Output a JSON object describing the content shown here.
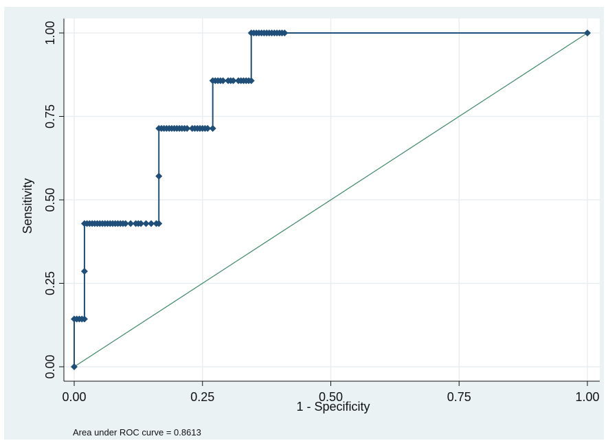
{
  "chart_data": {
    "type": "line",
    "xlabel": "1 - Specificity",
    "ylabel": "Sensitivity",
    "xlim": [
      0,
      1
    ],
    "ylim": [
      0,
      1
    ],
    "x_ticks": [
      "0.00",
      "0.25",
      "0.50",
      "0.75",
      "1.00"
    ],
    "y_ticks": [
      "0.00",
      "0.25",
      "0.50",
      "0.75",
      "1.00"
    ],
    "grid": true,
    "series": [
      {
        "name": "",
        "color": "#1f4e79",
        "marker": "diamond",
        "points": [
          [
            0.0,
            0.0
          ],
          [
            0.0,
            0.143
          ],
          [
            0.005,
            0.143
          ],
          [
            0.01,
            0.143
          ],
          [
            0.015,
            0.143
          ],
          [
            0.02,
            0.143
          ],
          [
            0.02,
            0.286
          ],
          [
            0.02,
            0.429
          ],
          [
            0.025,
            0.429
          ],
          [
            0.03,
            0.429
          ],
          [
            0.035,
            0.429
          ],
          [
            0.04,
            0.429
          ],
          [
            0.045,
            0.429
          ],
          [
            0.05,
            0.429
          ],
          [
            0.055,
            0.429
          ],
          [
            0.06,
            0.429
          ],
          [
            0.065,
            0.429
          ],
          [
            0.07,
            0.429
          ],
          [
            0.075,
            0.429
          ],
          [
            0.08,
            0.429
          ],
          [
            0.085,
            0.429
          ],
          [
            0.09,
            0.429
          ],
          [
            0.095,
            0.429
          ],
          [
            0.1,
            0.429
          ],
          [
            0.11,
            0.429
          ],
          [
            0.12,
            0.429
          ],
          [
            0.125,
            0.429
          ],
          [
            0.13,
            0.429
          ],
          [
            0.14,
            0.429
          ],
          [
            0.15,
            0.429
          ],
          [
            0.16,
            0.429
          ],
          [
            0.165,
            0.429
          ],
          [
            0.165,
            0.571
          ],
          [
            0.165,
            0.714
          ],
          [
            0.17,
            0.714
          ],
          [
            0.175,
            0.714
          ],
          [
            0.18,
            0.714
          ],
          [
            0.185,
            0.714
          ],
          [
            0.19,
            0.714
          ],
          [
            0.195,
            0.714
          ],
          [
            0.2,
            0.714
          ],
          [
            0.205,
            0.714
          ],
          [
            0.21,
            0.714
          ],
          [
            0.215,
            0.714
          ],
          [
            0.22,
            0.714
          ],
          [
            0.23,
            0.714
          ],
          [
            0.235,
            0.714
          ],
          [
            0.24,
            0.714
          ],
          [
            0.245,
            0.714
          ],
          [
            0.25,
            0.714
          ],
          [
            0.255,
            0.714
          ],
          [
            0.26,
            0.714
          ],
          [
            0.27,
            0.714
          ],
          [
            0.27,
            0.857
          ],
          [
            0.275,
            0.857
          ],
          [
            0.28,
            0.857
          ],
          [
            0.285,
            0.857
          ],
          [
            0.29,
            0.857
          ],
          [
            0.3,
            0.857
          ],
          [
            0.305,
            0.857
          ],
          [
            0.31,
            0.857
          ],
          [
            0.32,
            0.857
          ],
          [
            0.325,
            0.857
          ],
          [
            0.33,
            0.857
          ],
          [
            0.335,
            0.857
          ],
          [
            0.34,
            0.857
          ],
          [
            0.345,
            0.857
          ],
          [
            0.345,
            1.0
          ],
          [
            0.35,
            1.0
          ],
          [
            0.355,
            1.0
          ],
          [
            0.36,
            1.0
          ],
          [
            0.365,
            1.0
          ],
          [
            0.37,
            1.0
          ],
          [
            0.375,
            1.0
          ],
          [
            0.38,
            1.0
          ],
          [
            0.385,
            1.0
          ],
          [
            0.39,
            1.0
          ],
          [
            0.395,
            1.0
          ],
          [
            0.4,
            1.0
          ],
          [
            0.405,
            1.0
          ],
          [
            0.41,
            1.0
          ],
          [
            1.0,
            1.0
          ]
        ]
      },
      {
        "name": "",
        "color": "#3f8a6a",
        "marker": "none",
        "points": [
          [
            0,
            0
          ],
          [
            1,
            1
          ]
        ]
      }
    ],
    "annotation": "Area under ROC curve = 0.8613"
  }
}
